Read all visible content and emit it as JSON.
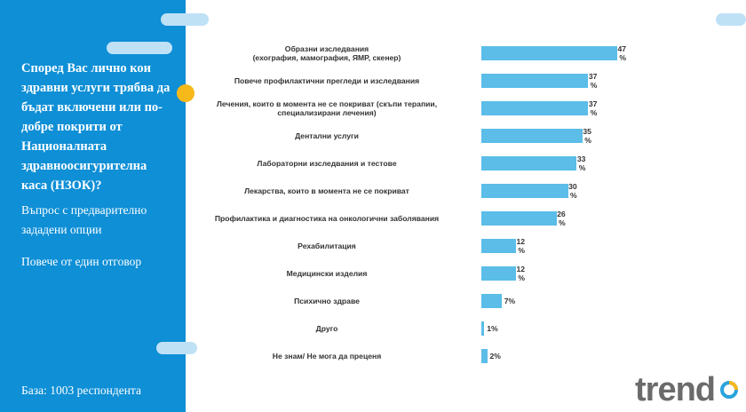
{
  "sidebar": {
    "question": "Според Вас лично кои здравни услуги трябва да бъдат включени или по-добре покрити от Националната здравноосигурителна каса (НЗОК)?",
    "note1": "Въпрос с предварително зададени опции",
    "note2": "Повече от един отговор",
    "base": "База: 1003 респондента"
  },
  "logo": {
    "text": "trend"
  },
  "colors": {
    "sidebar": "#0e8fd6",
    "bar": "#5bbde8",
    "accent_dot": "#f7b81a",
    "pill": "#bfe1f6"
  },
  "chart_data": {
    "type": "bar",
    "orientation": "horizontal",
    "unit": "%",
    "categories": [
      "Образни изследвания\n(ехография, мамография, ЯМР, скенер)",
      "Повече профилактични прегледи и изследвания",
      "Лечения, които в момента не се покриват (скъпи терапии,\nспециализирани лечения)",
      "Дентални услуги",
      "Лабораторни изследвания и тестове",
      "Лекарства, които в момента не се покриват",
      "Профилактика и диагностика на онкологични заболявания",
      "Рехабилитация",
      "Медицински изделия",
      "Психично здраве",
      "Друго",
      "Не знам/ Не мога да преценя"
    ],
    "values": [
      47,
      37,
      37,
      35,
      33,
      30,
      26,
      12,
      12,
      7,
      1,
      2
    ],
    "xlim": [
      0,
      47
    ],
    "grid": false,
    "legend": "none"
  }
}
